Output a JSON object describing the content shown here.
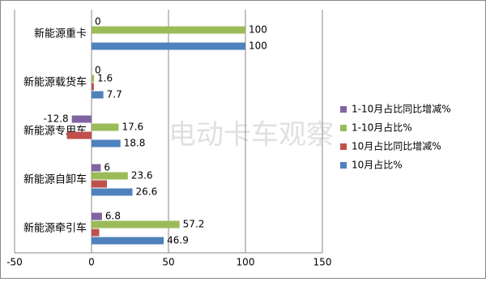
{
  "chart_data": {
    "type": "bar",
    "orientation": "horizontal",
    "watermark": "电动卡车观察",
    "categories": [
      "新能源重卡",
      "新能源载货车",
      "新能源专用车",
      "新能源自卸车",
      "新能源牵引车"
    ],
    "series": [
      {
        "name": "1-10月占比同比增减%",
        "color": "#8064a2",
        "values": [
          0,
          0,
          -12.8,
          6,
          6.8
        ],
        "show_labels": true
      },
      {
        "name": "1-10月占比%",
        "color": "#9bbb59",
        "values": [
          100,
          1.6,
          17.6,
          23.6,
          57.2
        ],
        "show_labels": true
      },
      {
        "name": "10月占比同比增减%",
        "color": "#c0504d",
        "values": [
          0,
          1.5,
          -16,
          10,
          5
        ],
        "show_labels": false
      },
      {
        "name": "10月占比%",
        "color": "#4f81bd",
        "values": [
          100,
          7.7,
          18.8,
          26.6,
          46.9
        ],
        "show_labels": true
      }
    ],
    "xlim": [
      -50,
      150
    ],
    "xticks": [
      -50,
      0,
      50,
      100,
      150
    ],
    "grid": true,
    "legend": "right"
  }
}
